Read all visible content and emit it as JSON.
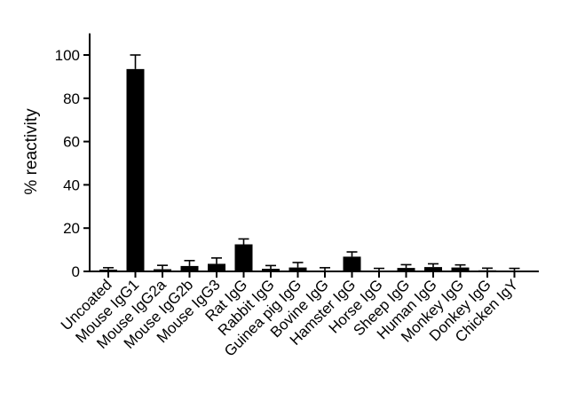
{
  "chart_data": {
    "type": "bar",
    "title": "",
    "xlabel": "",
    "ylabel": "% reactivity",
    "ylim": [
      0,
      110
    ],
    "yticks": [
      0,
      20,
      40,
      60,
      80,
      100
    ],
    "grid": false,
    "legend": "none",
    "bar_color": "#000000",
    "categories": [
      "Uncoated",
      "Mouse IgG1",
      "Mouse IgG2a",
      "Mouse IgG2b",
      "Mouse IgG3",
      "Rat IgG",
      "Rabbit IgG",
      "Guinea pig IgG",
      "Bovine IgG",
      "Hamster IgG",
      "Horse IgG",
      "Sheep IgG",
      "Human IgG",
      "Monkey IgG",
      "Donkey IgG",
      "Chicken IgY"
    ],
    "values": [
      0.8,
      93.5,
      1.0,
      2.5,
      3.5,
      12.5,
      1.2,
      1.8,
      0.2,
      6.8,
      0.4,
      1.6,
      2.0,
      1.8,
      0.5,
      0.2
    ],
    "errors": [
      0.9,
      6.5,
      1.8,
      2.5,
      2.7,
      2.5,
      1.5,
      2.3,
      1.5,
      2.2,
      1.0,
      1.5,
      1.5,
      1.2,
      1.0,
      1.2
    ]
  }
}
